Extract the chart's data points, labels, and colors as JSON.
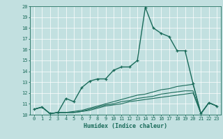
{
  "xlabel": "Humidex (Indice chaleur)",
  "background_color": "#c2e0e0",
  "line_color": "#1a6b5a",
  "xlim_min": -0.5,
  "xlim_max": 23.5,
  "ylim_min": 10,
  "ylim_max": 20,
  "yticks": [
    10,
    11,
    12,
    13,
    14,
    15,
    16,
    17,
    18,
    19,
    20
  ],
  "xticks": [
    0,
    1,
    2,
    3,
    4,
    5,
    6,
    7,
    8,
    9,
    10,
    11,
    12,
    13,
    14,
    15,
    16,
    17,
    18,
    19,
    20,
    21,
    22,
    23
  ],
  "main_line_x": [
    0,
    1,
    2,
    3,
    4,
    5,
    6,
    7,
    8,
    9,
    10,
    11,
    12,
    13,
    14,
    15,
    16,
    17,
    18,
    19,
    20,
    21,
    22,
    23
  ],
  "main_line_y": [
    10.5,
    10.7,
    10.1,
    10.2,
    11.5,
    11.2,
    12.5,
    13.1,
    13.3,
    13.3,
    14.1,
    14.4,
    14.4,
    15.0,
    19.9,
    18.0,
    17.5,
    17.2,
    15.9,
    15.9,
    12.9,
    10.1,
    11.1,
    10.8
  ],
  "flat_lines": [
    [
      10.5,
      10.7,
      10.1,
      10.2,
      10.2,
      10.3,
      10.4,
      10.6,
      10.8,
      11.0,
      11.2,
      11.4,
      11.6,
      11.8,
      11.9,
      12.1,
      12.3,
      12.4,
      12.6,
      12.7,
      12.8,
      10.1,
      11.1,
      10.8
    ],
    [
      10.5,
      10.7,
      10.1,
      10.2,
      10.2,
      10.2,
      10.3,
      10.5,
      10.7,
      10.9,
      11.0,
      11.2,
      11.3,
      11.5,
      11.6,
      11.7,
      11.9,
      12.0,
      12.1,
      12.2,
      12.2,
      10.1,
      11.1,
      10.8
    ],
    [
      10.5,
      10.7,
      10.1,
      10.2,
      10.2,
      10.2,
      10.3,
      10.4,
      10.6,
      10.8,
      10.9,
      11.0,
      11.2,
      11.3,
      11.4,
      11.5,
      11.6,
      11.7,
      11.8,
      11.9,
      12.0,
      10.1,
      11.1,
      10.8
    ]
  ],
  "xlabel_fontsize": 6.0,
  "tick_fontsize": 5.0,
  "linewidth_main": 1.0,
  "linewidth_flat": 0.8,
  "markersize": 3.5,
  "grid_color": "#ffffff",
  "grid_linewidth": 0.5,
  "spine_linewidth": 0.6
}
